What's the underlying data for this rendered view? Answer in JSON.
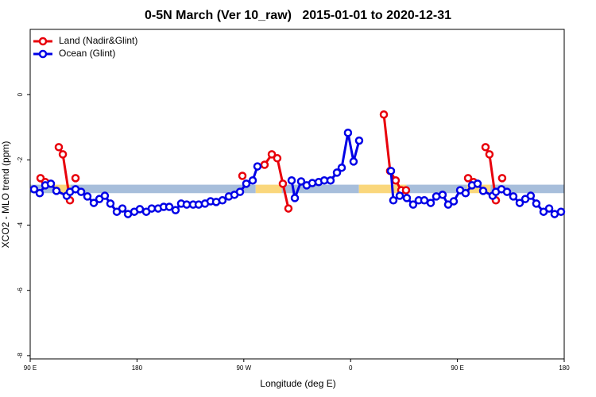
{
  "chart_data": {
    "type": "line",
    "title": "0-5N March (Ver 10_raw)   2015-01-01 to 2020-12-31",
    "x_label": "Longitude (deg E)",
    "y_label": "XCO2 - MLO trend (ppm)",
    "xlim": [
      90,
      540
    ],
    "xticks": [
      {
        "value": 90,
        "label": "90 E"
      },
      180,
      {
        "value": 270,
        "label": "90 W"
      },
      {
        "value": 360,
        "label": "0"
      },
      {
        "value": 450,
        "label": "90 E"
      },
      {
        "value": 540,
        "label": "180"
      }
    ],
    "ylim": [
      -8.1,
      2
    ],
    "yticks": [
      0,
      -2,
      -4,
      -6,
      -8
    ],
    "legend": "top-left",
    "band": {
      "ylim": [
        -3.02,
        -2.76
      ],
      "segments": [
        {
          "x": [
            90,
            110
          ],
          "color": "#a7bedb"
        },
        {
          "x": [
            110,
            124
          ],
          "color": "#fad77c"
        },
        {
          "x": [
            124,
            280
          ],
          "color": "#a7bedb"
        },
        {
          "x": [
            280,
            302
          ],
          "color": "#fad77c"
        },
        {
          "x": [
            302,
            367
          ],
          "color": "#a7bedb"
        },
        {
          "x": [
            367,
            407
          ],
          "color": "#fad77c"
        },
        {
          "x": [
            407,
            458
          ],
          "color": "#a7bedb"
        },
        {
          "x": [
            458,
            478
          ],
          "color": "#fad77c"
        },
        {
          "x": [
            478,
            540
          ],
          "color": "#a7bedb"
        }
      ]
    },
    "series": [
      {
        "name": "Land (Nadir&Glint)",
        "color": "#e8000b",
        "x": [
          98.7,
          102.7,
          null,
          114.1,
          117.5,
          123.5,
          null,
          128.2,
          null,
          268.8,
          null,
          287.5,
          293.6,
          298.2,
          302.9,
          307.6,
          null,
          388.0,
          393.3,
          398.0,
          402.7,
          406.7,
          null,
          459.0,
          463.6,
          null,
          473.7,
          477.0,
          482.4,
          null,
          487.7
        ],
        "values": [
          -2.56,
          -2.68,
          null,
          -1.61,
          -1.83,
          -3.24,
          null,
          -2.56,
          null,
          -2.49,
          null,
          -2.15,
          -1.83,
          -1.95,
          -2.73,
          -3.49,
          null,
          -0.61,
          -2.34,
          -2.63,
          -2.93,
          -2.93,
          null,
          -2.56,
          -2.68,
          null,
          -1.61,
          -1.83,
          -3.24,
          null,
          -2.56
        ]
      },
      {
        "name": "Ocean (Glint)",
        "color": "#0000e6",
        "x": [
          93.3,
          98.0,
          102.7,
          107.4,
          112.1,
          120.8,
          123.5,
          128.2,
          132.9,
          138.2,
          143.6,
          148.3,
          152.9,
          157.6,
          163.0,
          167.7,
          172.4,
          177.7,
          182.4,
          187.8,
          192.4,
          197.8,
          202.5,
          207.2,
          212.5,
          217.2,
          221.9,
          227.3,
          232.0,
          237.3,
          242.0,
          246.7,
          252.0,
          257.4,
          262.1,
          266.8,
          272.1,
          277.5,
          281.5,
          null,
          310.3,
          313.0,
          318.3,
          323.0,
          327.7,
          333.1,
          337.8,
          343.1,
          348.5,
          352.5,
          357.8,
          362.5,
          367.2,
          null,
          394.0,
          396.0,
          401.4,
          407.4,
          412.7,
          417.4,
          422.1,
          427.5,
          432.2,
          437.5,
          442.2,
          446.9,
          452.3,
          456.9,
          462.3,
          467.0,
          471.7,
          479.7,
          482.4,
          487.1,
          491.8,
          497.1,
          502.5,
          507.2,
          511.8,
          516.5,
          522.6,
          527.3,
          531.9,
          537.3
        ],
        "values": [
          -2.9,
          -3.02,
          -2.78,
          -2.73,
          -2.95,
          -3.1,
          -2.98,
          -2.9,
          -2.98,
          -3.12,
          -3.32,
          -3.2,
          -3.1,
          -3.34,
          -3.59,
          -3.49,
          -3.66,
          -3.59,
          -3.51,
          -3.59,
          -3.49,
          -3.49,
          -3.44,
          -3.44,
          -3.54,
          -3.34,
          -3.37,
          -3.37,
          -3.37,
          -3.34,
          -3.27,
          -3.29,
          -3.24,
          -3.12,
          -3.07,
          -2.98,
          -2.73,
          -2.63,
          -2.2,
          null,
          -2.63,
          -3.17,
          -2.66,
          -2.78,
          -2.71,
          -2.68,
          -2.63,
          -2.63,
          -2.39,
          -2.24,
          -1.17,
          -2.05,
          -1.41,
          null,
          -2.34,
          -3.24,
          -3.1,
          -3.17,
          -3.37,
          -3.24,
          -3.24,
          -3.32,
          -3.12,
          -3.07,
          -3.37,
          -3.27,
          -2.93,
          -3.02,
          -2.78,
          -2.73,
          -2.95,
          -3.1,
          -2.98,
          -2.9,
          -2.98,
          -3.12,
          -3.32,
          -3.2,
          -3.1,
          -3.34,
          -3.59,
          -3.49,
          -3.66,
          -3.59
        ]
      }
    ]
  }
}
